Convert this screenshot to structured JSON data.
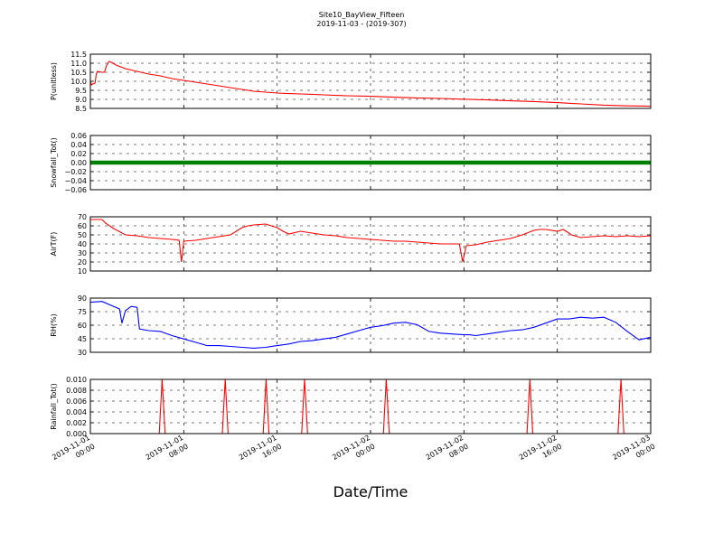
{
  "figure": {
    "title": "Site10_BayView_Fifteen",
    "subtitle": "2019-11-03 - (2019-307)",
    "xlabel": "Date/Time"
  },
  "chart_data": [
    {
      "type": "line",
      "ylabel": "P(unitless)",
      "ylim": [
        8.5,
        11.5
      ],
      "yticks": [
        "8.5",
        "9.0",
        "9.5",
        "10.0",
        "10.5",
        "11.0",
        "11.5"
      ],
      "color": "#ff0000",
      "grid": true,
      "x": [
        0,
        0.05,
        0.1,
        0.2,
        0.4,
        0.5,
        0.6,
        1.0,
        1.2,
        1.4,
        1.6,
        1.8,
        2.2,
        3,
        4,
        5,
        6,
        7,
        7.5,
        8,
        9,
        10,
        11,
        12,
        13,
        14,
        15,
        16,
        17,
        18,
        19,
        20,
        22,
        24,
        26,
        28,
        30,
        32,
        34,
        36,
        38,
        40,
        42,
        44,
        46,
        48
      ],
      "values": [
        9.8,
        9.9,
        9.8,
        9.85,
        9.9,
        10.4,
        10.55,
        10.5,
        10.5,
        10.9,
        11.1,
        11.05,
        10.9,
        10.7,
        10.55,
        10.4,
        10.3,
        10.15,
        10.1,
        10.05,
        9.95,
        9.85,
        9.75,
        9.65,
        9.55,
        9.45,
        9.4,
        9.35,
        9.32,
        9.3,
        9.28,
        9.25,
        9.2,
        9.17,
        9.12,
        9.08,
        9.05,
        9.01,
        8.97,
        8.92,
        8.88,
        8.82,
        8.75,
        8.68,
        8.64,
        8.62
      ]
    },
    {
      "type": "line",
      "ylabel": "Snowfall_Tot()",
      "ylim": [
        -0.06,
        0.06
      ],
      "yticks": [
        "−0.06",
        "−0.04",
        "−0.02",
        "0.00",
        "0.02",
        "0.04",
        "0.06"
      ],
      "color": "#008000",
      "marker": "dot",
      "grid": true,
      "x": [
        0,
        48
      ],
      "values": [
        0,
        0
      ]
    },
    {
      "type": "line",
      "ylabel": "AirT(F)",
      "ylim": [
        10,
        70
      ],
      "yticks": [
        "10",
        "20",
        "30",
        "40",
        "50",
        "60",
        "70"
      ],
      "color": "#ff0000",
      "grid": true,
      "x": [
        0,
        1,
        1.3,
        2,
        3,
        4,
        5,
        6,
        7,
        7.6,
        7.8,
        8,
        9,
        10,
        11,
        12,
        13,
        13.5,
        14,
        15,
        16,
        16.5,
        17,
        18,
        19,
        20,
        21,
        22,
        23,
        24,
        25,
        26,
        27,
        28,
        29,
        30,
        31,
        31.6,
        31.9,
        32.2,
        33,
        34,
        35,
        36,
        37,
        38,
        38.5,
        39,
        40,
        40.5,
        41,
        41.2,
        41.5,
        42,
        43,
        44,
        45,
        46,
        47,
        48
      ],
      "values": [
        67,
        67,
        63,
        57,
        50,
        49,
        47,
        46,
        45,
        44,
        20,
        43,
        44,
        46,
        48,
        50,
        58,
        60,
        61,
        62,
        58,
        54,
        51,
        54,
        52,
        50,
        49,
        47,
        46,
        45,
        44,
        43,
        43,
        42,
        41,
        40,
        40,
        40,
        20,
        38,
        39,
        42,
        44,
        46,
        50,
        55,
        56,
        56,
        54,
        56,
        52,
        50,
        49,
        47,
        48,
        49,
        48,
        49,
        48,
        49
      ]
    },
    {
      "type": "line",
      "ylabel": "RH(%)",
      "ylim": [
        30,
        95
      ],
      "yticks": [
        "30",
        "45",
        "60",
        "75",
        "90"
      ],
      "color": "#0000ff",
      "grid": true,
      "x": [
        0,
        1,
        2,
        2.5,
        2.7,
        3,
        3.5,
        4,
        4.2,
        5,
        6,
        7,
        8,
        9,
        10,
        11,
        12,
        13,
        14,
        15,
        16,
        17,
        18,
        19,
        20,
        21,
        22,
        23,
        24,
        25,
        26,
        27,
        28,
        29,
        30,
        31,
        32,
        32.5,
        33,
        34,
        35,
        36,
        37,
        38,
        39,
        40,
        41,
        42,
        43,
        44,
        45,
        46,
        47,
        48
      ],
      "values": [
        90,
        91,
        85,
        82,
        65,
        80,
        85,
        84,
        58,
        56,
        55,
        50,
        46,
        42,
        38,
        38,
        37,
        36,
        35,
        36,
        38,
        40,
        43,
        44,
        46,
        48,
        52,
        56,
        60,
        62,
        65,
        66,
        63,
        55,
        53,
        52,
        51,
        51,
        50,
        52,
        54,
        56,
        57,
        60,
        65,
        70,
        70,
        72,
        71,
        72,
        66,
        55,
        45,
        48
      ]
    },
    {
      "type": "line",
      "ylabel": "Rainfall_Tot()",
      "ylim": [
        0,
        0.01
      ],
      "yticks": [
        "0.000",
        "0.002",
        "0.004",
        "0.006",
        "0.008",
        "0.010"
      ],
      "color": "#ff0000",
      "grid": true,
      "x": [
        0,
        5.9,
        6.15,
        6.4,
        11.3,
        11.55,
        11.8,
        14.8,
        15.05,
        15.3,
        18.1,
        18.35,
        18.6,
        25.1,
        25.35,
        25.6,
        37.4,
        37.65,
        37.9,
        45.2,
        45.45,
        45.7,
        48
      ],
      "values": [
        0,
        0,
        0.01,
        0,
        0,
        0.01,
        0,
        0,
        0.01,
        0,
        0,
        0.01,
        0,
        0,
        0.01,
        0,
        0,
        0.01,
        0,
        0,
        0.01,
        0,
        0
      ]
    }
  ],
  "xaxis": {
    "range": [
      0,
      48
    ],
    "ticks": [
      {
        "x": 0,
        "line1": "2019-11-01",
        "line2": "00:00"
      },
      {
        "x": 8,
        "line1": "2019-11-01",
        "line2": "08:00"
      },
      {
        "x": 16,
        "line1": "2019-11-01",
        "line2": "16:00"
      },
      {
        "x": 24,
        "line1": "2019-11-02",
        "line2": "00:00"
      },
      {
        "x": 32,
        "line1": "2019-11-02",
        "line2": "08:00"
      },
      {
        "x": 40,
        "line1": "2019-11-02",
        "line2": "16:00"
      },
      {
        "x": 48,
        "line1": "2019-11-03",
        "line2": "00:00"
      }
    ]
  }
}
